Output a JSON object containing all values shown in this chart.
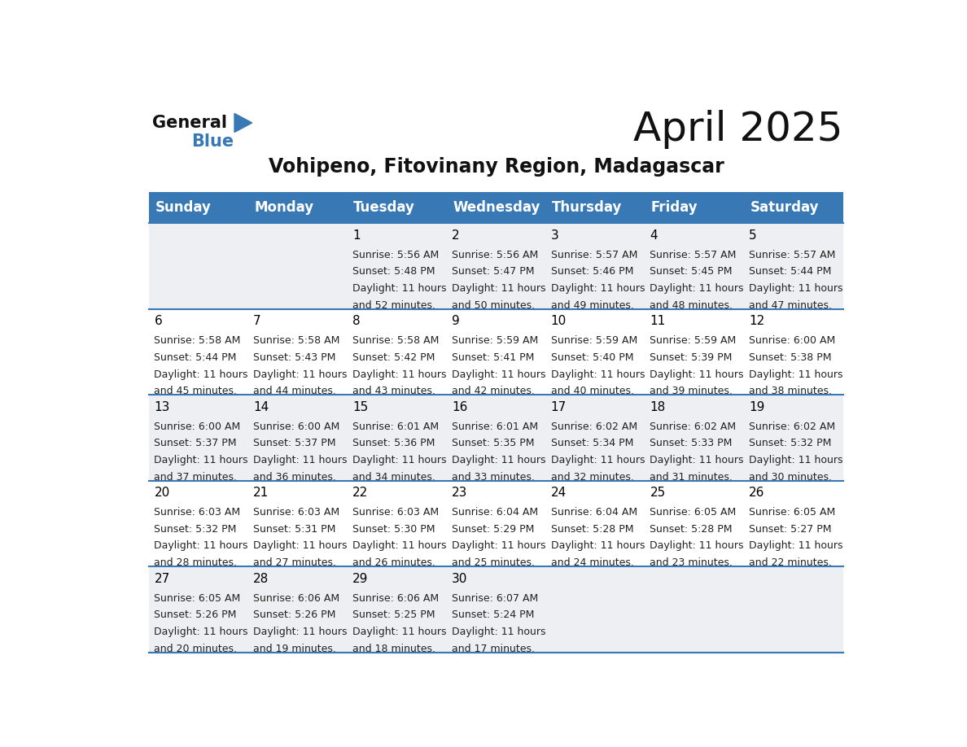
{
  "title": "April 2025",
  "subtitle": "Vohipeno, Fitovinany Region, Madagascar",
  "header_bg_color": "#3878B4",
  "header_text_color": "#FFFFFF",
  "day_names": [
    "Sunday",
    "Monday",
    "Tuesday",
    "Wednesday",
    "Thursday",
    "Friday",
    "Saturday"
  ],
  "row_colors": [
    "#EEEFF2",
    "#FFFFFF",
    "#EEEFF2",
    "#FFFFFF",
    "#EEEFF2"
  ],
  "border_color": "#3878B4",
  "day_number_color": "#000000",
  "text_color": "#333333",
  "calendar_data": [
    [
      null,
      null,
      {
        "day": "1",
        "sunrise": "5:56 AM",
        "sunset": "5:48 PM",
        "daylight": "11 hours",
        "daylight2": "and 52 minutes."
      },
      {
        "day": "2",
        "sunrise": "5:56 AM",
        "sunset": "5:47 PM",
        "daylight": "11 hours",
        "daylight2": "and 50 minutes."
      },
      {
        "day": "3",
        "sunrise": "5:57 AM",
        "sunset": "5:46 PM",
        "daylight": "11 hours",
        "daylight2": "and 49 minutes."
      },
      {
        "day": "4",
        "sunrise": "5:57 AM",
        "sunset": "5:45 PM",
        "daylight": "11 hours",
        "daylight2": "and 48 minutes."
      },
      {
        "day": "5",
        "sunrise": "5:57 AM",
        "sunset": "5:44 PM",
        "daylight": "11 hours",
        "daylight2": "and 47 minutes."
      }
    ],
    [
      {
        "day": "6",
        "sunrise": "5:58 AM",
        "sunset": "5:44 PM",
        "daylight": "11 hours",
        "daylight2": "and 45 minutes."
      },
      {
        "day": "7",
        "sunrise": "5:58 AM",
        "sunset": "5:43 PM",
        "daylight": "11 hours",
        "daylight2": "and 44 minutes."
      },
      {
        "day": "8",
        "sunrise": "5:58 AM",
        "sunset": "5:42 PM",
        "daylight": "11 hours",
        "daylight2": "and 43 minutes."
      },
      {
        "day": "9",
        "sunrise": "5:59 AM",
        "sunset": "5:41 PM",
        "daylight": "11 hours",
        "daylight2": "and 42 minutes."
      },
      {
        "day": "10",
        "sunrise": "5:59 AM",
        "sunset": "5:40 PM",
        "daylight": "11 hours",
        "daylight2": "and 40 minutes."
      },
      {
        "day": "11",
        "sunrise": "5:59 AM",
        "sunset": "5:39 PM",
        "daylight": "11 hours",
        "daylight2": "and 39 minutes."
      },
      {
        "day": "12",
        "sunrise": "6:00 AM",
        "sunset": "5:38 PM",
        "daylight": "11 hours",
        "daylight2": "and 38 minutes."
      }
    ],
    [
      {
        "day": "13",
        "sunrise": "6:00 AM",
        "sunset": "5:37 PM",
        "daylight": "11 hours",
        "daylight2": "and 37 minutes."
      },
      {
        "day": "14",
        "sunrise": "6:00 AM",
        "sunset": "5:37 PM",
        "daylight": "11 hours",
        "daylight2": "and 36 minutes."
      },
      {
        "day": "15",
        "sunrise": "6:01 AM",
        "sunset": "5:36 PM",
        "daylight": "11 hours",
        "daylight2": "and 34 minutes."
      },
      {
        "day": "16",
        "sunrise": "6:01 AM",
        "sunset": "5:35 PM",
        "daylight": "11 hours",
        "daylight2": "and 33 minutes."
      },
      {
        "day": "17",
        "sunrise": "6:02 AM",
        "sunset": "5:34 PM",
        "daylight": "11 hours",
        "daylight2": "and 32 minutes."
      },
      {
        "day": "18",
        "sunrise": "6:02 AM",
        "sunset": "5:33 PM",
        "daylight": "11 hours",
        "daylight2": "and 31 minutes."
      },
      {
        "day": "19",
        "sunrise": "6:02 AM",
        "sunset": "5:32 PM",
        "daylight": "11 hours",
        "daylight2": "and 30 minutes."
      }
    ],
    [
      {
        "day": "20",
        "sunrise": "6:03 AM",
        "sunset": "5:32 PM",
        "daylight": "11 hours",
        "daylight2": "and 28 minutes."
      },
      {
        "day": "21",
        "sunrise": "6:03 AM",
        "sunset": "5:31 PM",
        "daylight": "11 hours",
        "daylight2": "and 27 minutes."
      },
      {
        "day": "22",
        "sunrise": "6:03 AM",
        "sunset": "5:30 PM",
        "daylight": "11 hours",
        "daylight2": "and 26 minutes."
      },
      {
        "day": "23",
        "sunrise": "6:04 AM",
        "sunset": "5:29 PM",
        "daylight": "11 hours",
        "daylight2": "and 25 minutes."
      },
      {
        "day": "24",
        "sunrise": "6:04 AM",
        "sunset": "5:28 PM",
        "daylight": "11 hours",
        "daylight2": "and 24 minutes."
      },
      {
        "day": "25",
        "sunrise": "6:05 AM",
        "sunset": "5:28 PM",
        "daylight": "11 hours",
        "daylight2": "and 23 minutes."
      },
      {
        "day": "26",
        "sunrise": "6:05 AM",
        "sunset": "5:27 PM",
        "daylight": "11 hours",
        "daylight2": "and 22 minutes."
      }
    ],
    [
      {
        "day": "27",
        "sunrise": "6:05 AM",
        "sunset": "5:26 PM",
        "daylight": "11 hours",
        "daylight2": "and 20 minutes."
      },
      {
        "day": "28",
        "sunrise": "6:06 AM",
        "sunset": "5:26 PM",
        "daylight": "11 hours",
        "daylight2": "and 19 minutes."
      },
      {
        "day": "29",
        "sunrise": "6:06 AM",
        "sunset": "5:25 PM",
        "daylight": "11 hours",
        "daylight2": "and 18 minutes."
      },
      {
        "day": "30",
        "sunrise": "6:07 AM",
        "sunset": "5:24 PM",
        "daylight": "11 hours",
        "daylight2": "and 17 minutes."
      },
      null,
      null,
      null
    ]
  ],
  "logo_general_color": "#111111",
  "logo_blue_color": "#3878B4",
  "title_fontsize": 36,
  "subtitle_fontsize": 17,
  "header_fontsize": 12,
  "day_num_fontsize": 11,
  "cell_text_fontsize": 9
}
